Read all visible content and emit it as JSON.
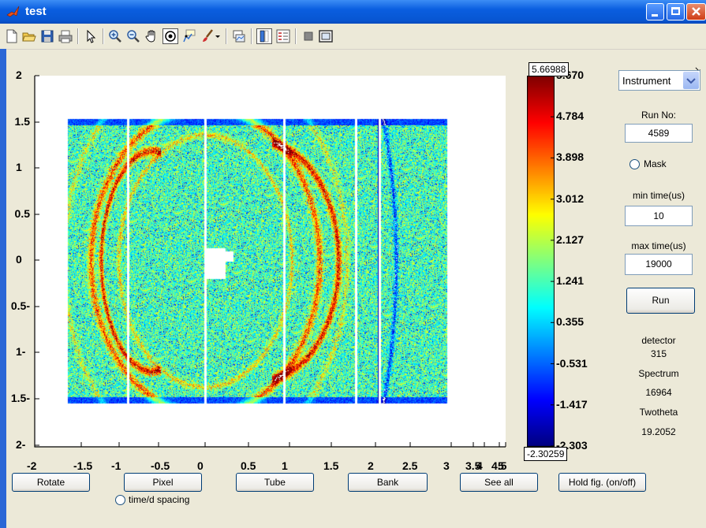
{
  "window": {
    "title": "test",
    "controls": [
      "minimize-icon",
      "maximize-icon",
      "close-icon"
    ]
  },
  "toolbar": {
    "icons": [
      "new-figure-icon",
      "open-file-icon",
      "save-icon",
      "print-icon",
      "select-arrow-icon",
      "zoom-in-icon",
      "zoom-out-icon",
      "pan-hand-icon",
      "rotate-3d-icon",
      "data-cursor-icon",
      "brush-icon",
      "brush-dropdown-icon",
      "link-plot-icon",
      "colorbar-icon",
      "legend-icon",
      "hide-plot-tools-icon",
      "show-plot-tools-icon"
    ],
    "corner_glyph": "↘"
  },
  "plot": {
    "y_ticks": [
      "2",
      "1.5",
      "1",
      "0.5",
      "0",
      "-0.5",
      "-1",
      "-1.5",
      "-2"
    ],
    "x_ticks": [
      "-2",
      "-1.5",
      "-1",
      "-0.5",
      "0",
      "0.5",
      "1",
      "1.5",
      "2",
      "2.5",
      "3",
      "3.5",
      "4",
      "4.5",
      "5"
    ],
    "colormap": "jet"
  },
  "colorbar": {
    "max_value": "5.66988",
    "min_value": "-2.30259",
    "ticks": [
      "5.670",
      "4.784",
      "3.898",
      "3.012",
      "2.127",
      "1.241",
      "0.355",
      "-0.531",
      "-1.417",
      "-2.303"
    ]
  },
  "panel": {
    "dropdown_value": "Instrument",
    "run_no_label": "Run No:",
    "run_no_value": "4589",
    "mask_label": "Mask",
    "min_time_label": "min time(us)",
    "min_time_value": "10",
    "max_time_label": "max time(us)",
    "max_time_value": "19000",
    "run_button": "Run",
    "detector_label": "detector",
    "detector_value": "315",
    "spectrum_label": "Spectrum",
    "spectrum_value": "16964",
    "twotheta_label": "Twotheta",
    "twotheta_value": "19.2052"
  },
  "bottom": {
    "rotate": "Rotate",
    "pixel": "Pixel",
    "tube": "Tube",
    "bank": "Bank",
    "see_all": "See all",
    "hold": "Hold fig. (on/off)",
    "spacing_label": "time/d spacing"
  },
  "colors": {
    "title_blue": "#0a5ee0",
    "button_border": "#003c74",
    "window_bg": "#ece9d8"
  }
}
